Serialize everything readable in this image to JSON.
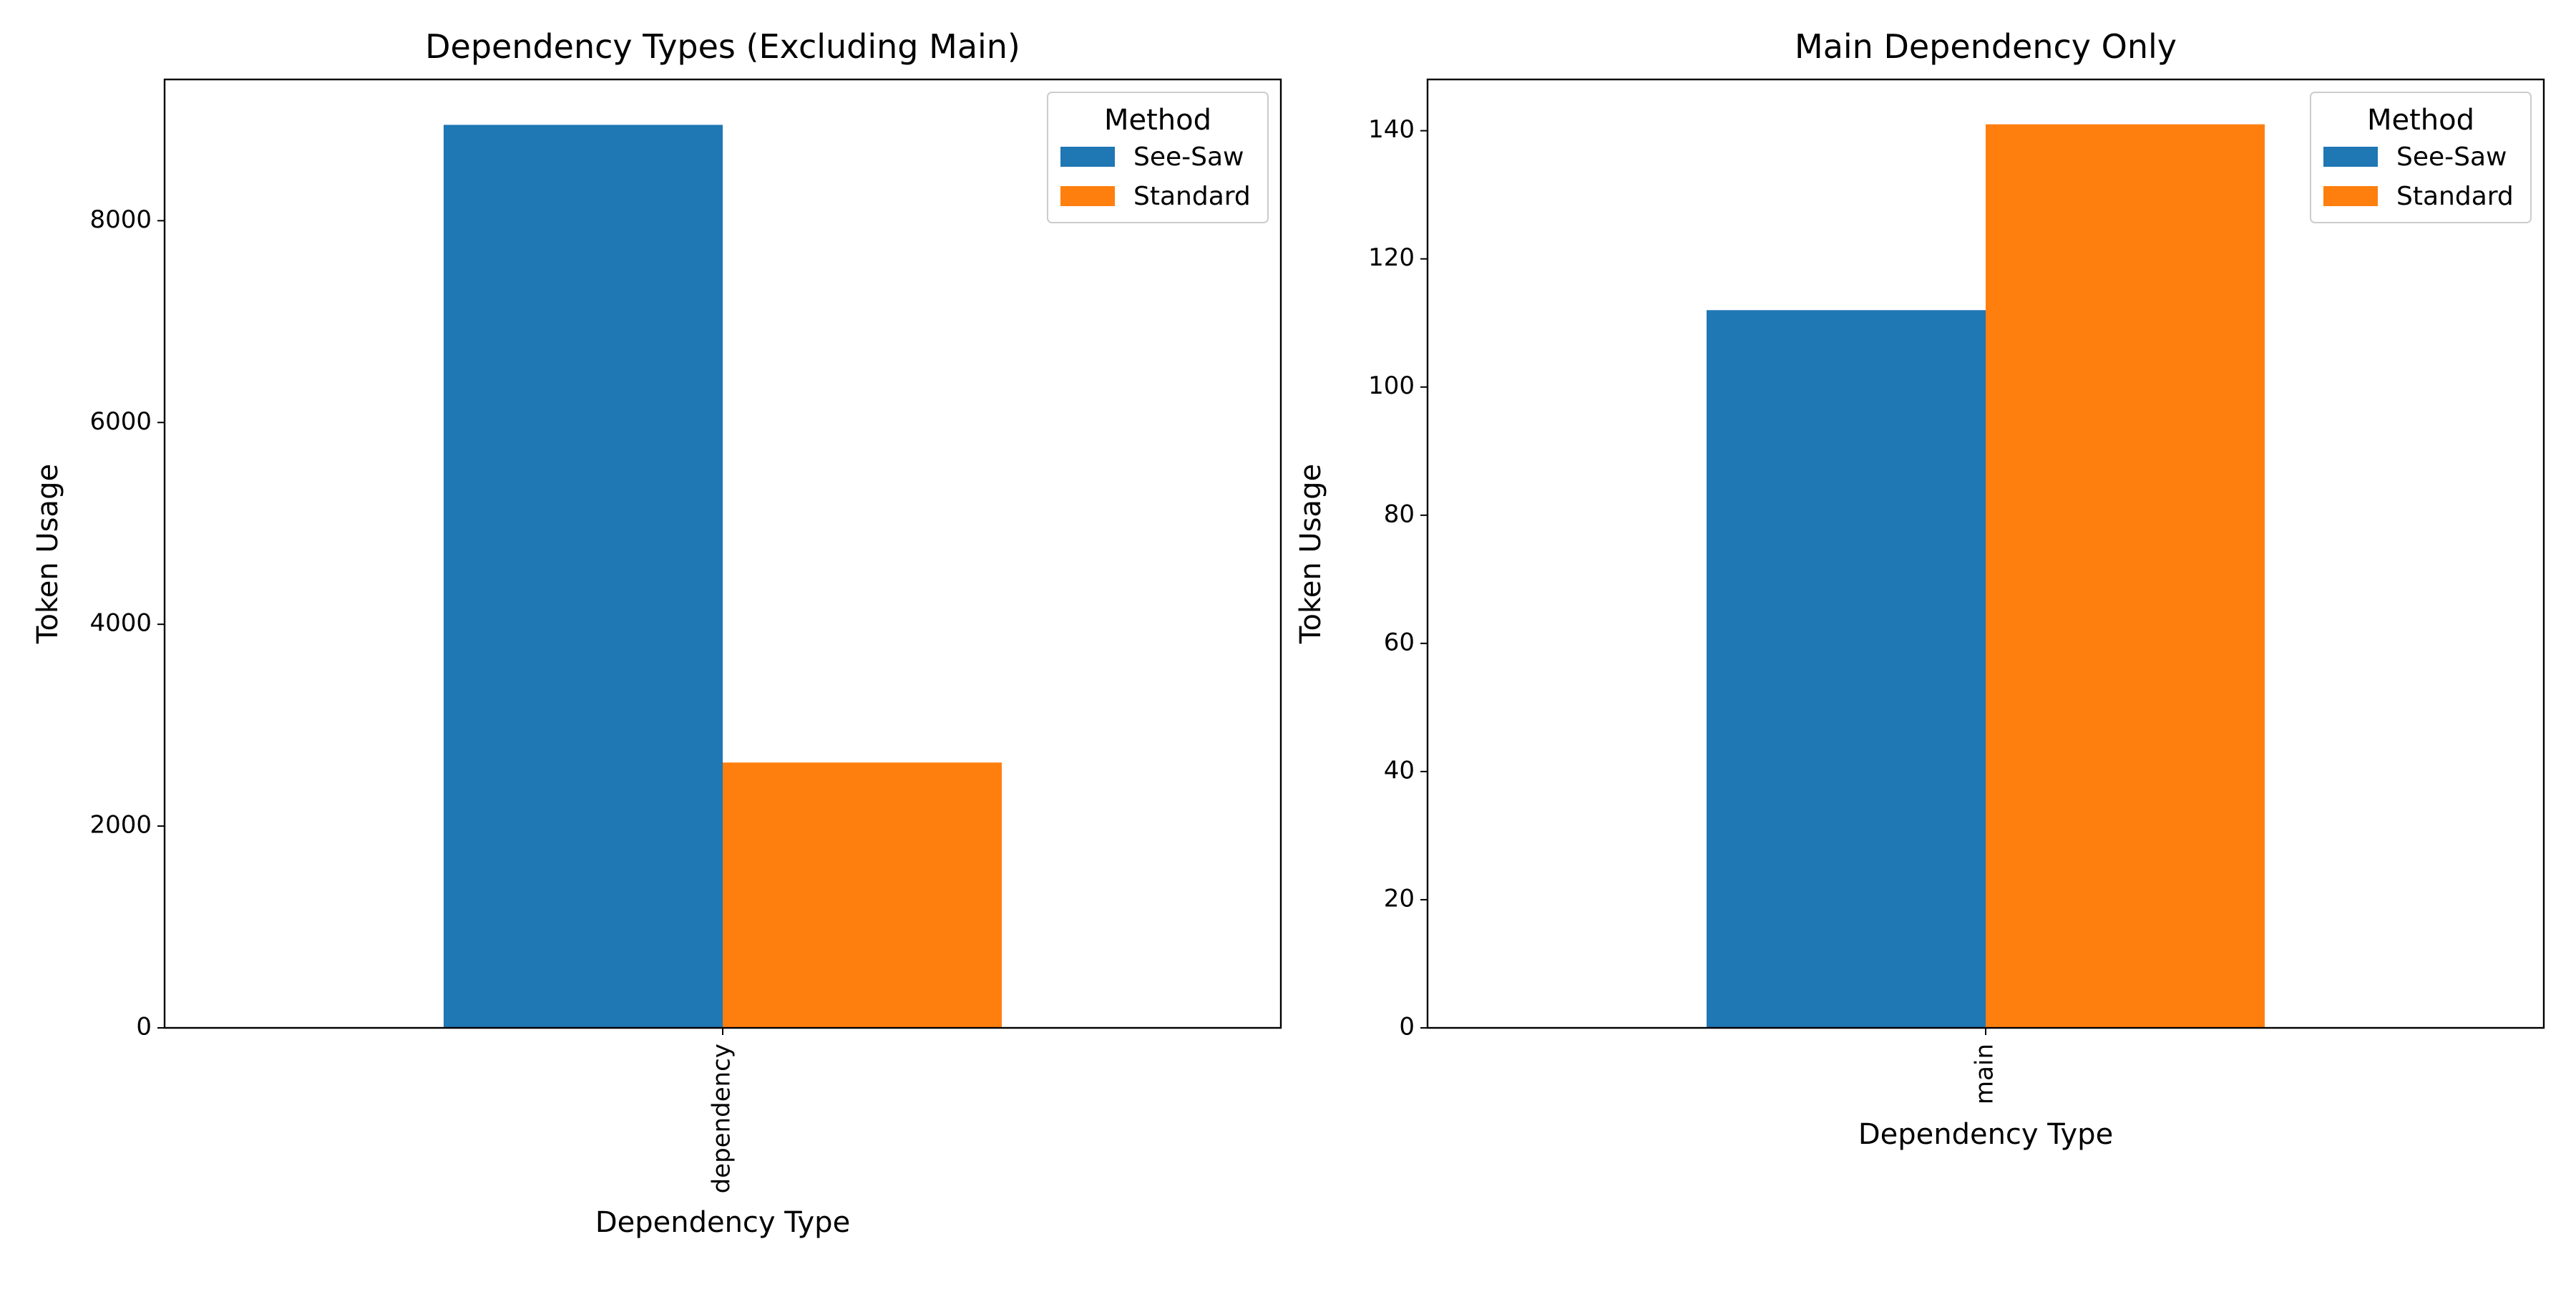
{
  "colors": {
    "see_saw": "#1f77b4",
    "standard": "#ff7f0e"
  },
  "chart_data": [
    {
      "type": "bar",
      "title": "Dependency Types (Excluding Main)",
      "xlabel": "Dependency Type",
      "ylabel": "Token Usage",
      "categories": [
        "dependency"
      ],
      "series": [
        {
          "name": "See-Saw",
          "values": [
            8950
          ]
        },
        {
          "name": "Standard",
          "values": [
            2630
          ]
        }
      ],
      "ylim": [
        0,
        9400
      ],
      "yticks": [
        0,
        2000,
        4000,
        6000,
        8000
      ],
      "legend": {
        "title": "Method",
        "placement": "top-right"
      },
      "grid": false
    },
    {
      "type": "bar",
      "title": "Main Dependency Only",
      "xlabel": "Dependency Type",
      "ylabel": "Token Usage",
      "categories": [
        "main"
      ],
      "series": [
        {
          "name": "See-Saw",
          "values": [
            112
          ]
        },
        {
          "name": "Standard",
          "values": [
            141
          ]
        }
      ],
      "ylim": [
        0,
        148
      ],
      "yticks": [
        0,
        20,
        40,
        60,
        80,
        100,
        120,
        140
      ],
      "legend": {
        "title": "Method",
        "placement": "top-right"
      },
      "grid": false
    }
  ]
}
